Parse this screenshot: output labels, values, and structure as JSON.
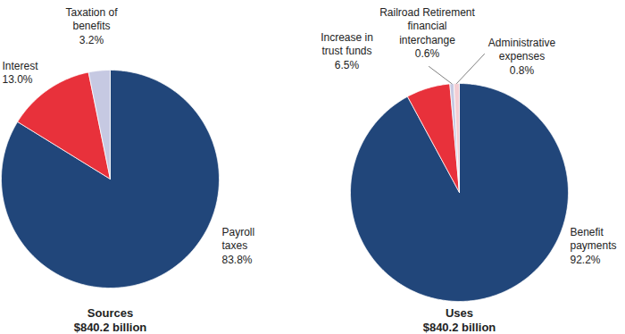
{
  "chart_data": [
    {
      "type": "pie",
      "title": "Sources",
      "subtitle": "$840.2 billion",
      "categories": [
        "Payroll\ntaxes",
        "Interest",
        "Taxation of\nbenefits"
      ],
      "values": [
        83.8,
        13.0,
        3.2
      ],
      "value_labels": [
        "83.8%",
        "13.0%",
        "3.2%"
      ],
      "colors": [
        "#21467a",
        "#e8313b",
        "#c6c9e2"
      ],
      "data_labels": true
    },
    {
      "type": "pie",
      "title": "Uses",
      "subtitle": "$840.2 billion",
      "categories": [
        "Benefit\npayments",
        "Increase in\ntrust funds",
        "Railroad Retirement\nfinancial\ninterchange",
        "Administrative\nexpenses"
      ],
      "values": [
        92.2,
        6.5,
        0.6,
        0.8
      ],
      "value_labels": [
        "92.2%",
        "6.5%",
        "0.6%",
        "0.8%"
      ],
      "colors": [
        "#21467a",
        "#e8313b",
        "#c6c9e2",
        "#f3cdd3"
      ],
      "data_labels": true
    }
  ]
}
